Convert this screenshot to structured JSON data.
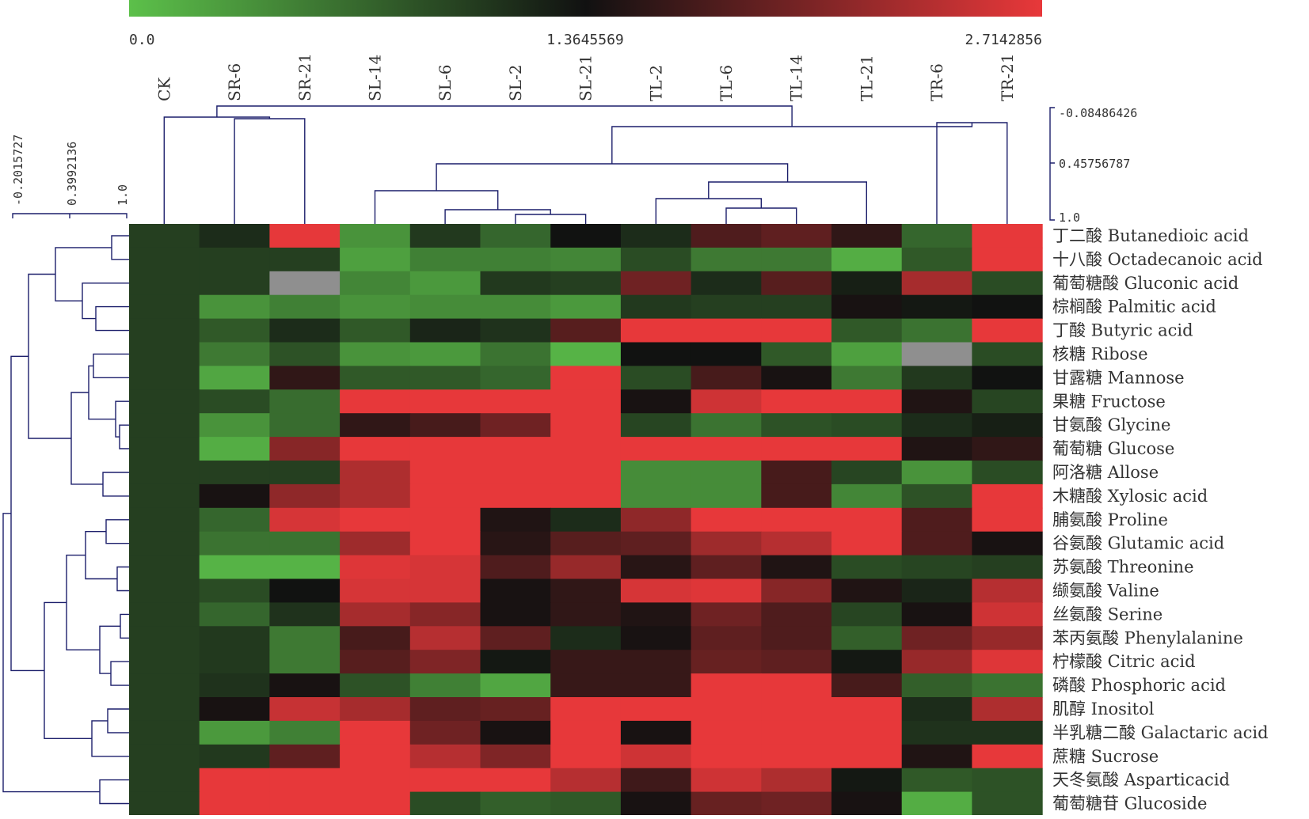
{
  "chart_data": {
    "type": "heatmap",
    "title": "",
    "color_scale": {
      "min": 0.0,
      "mid": 1.3645569,
      "max": 2.7142856,
      "min_label": "0.0",
      "mid_label": "1.3645569",
      "max_label": "2.7142856",
      "low_color": "#5cc04a",
      "mid_color": "#111111",
      "high_color": "#e8383a",
      "missing_color": "#8f8f8f"
    },
    "columns": [
      "CK",
      "SR-6",
      "SR-21",
      "SL-14",
      "SL-6",
      "SL-2",
      "SL-21",
      "TL-2",
      "TL-6",
      "TL-14",
      "TL-21",
      "TR-6",
      "TR-21"
    ],
    "rows": [
      {
        "zh": "丁二酸",
        "en": "Butanedioic acid"
      },
      {
        "zh": "十八酸",
        "en": "Octadecanoic acid"
      },
      {
        "zh": "葡萄糖酸",
        "en": "Gluconic acid"
      },
      {
        "zh": "棕榈酸",
        "en": "Palmitic acid"
      },
      {
        "zh": "丁酸",
        "en": "Butyric acid"
      },
      {
        "zh": "核糖",
        "en": "Ribose"
      },
      {
        "zh": "甘露糖",
        "en": "Mannose"
      },
      {
        "zh": "果糖",
        "en": "Fructose"
      },
      {
        "zh": "甘氨酸",
        "en": "Glycine"
      },
      {
        "zh": "葡萄糖",
        "en": "Glucose"
      },
      {
        "zh": "阿洛糖",
        "en": "Allose"
      },
      {
        "zh": "木糖酸",
        "en": "Xylosic acid"
      },
      {
        "zh": "脯氨酸",
        "en": "Proline"
      },
      {
        "zh": "谷氨酸",
        "en": "Glutamic acid"
      },
      {
        "zh": "苏氨酸",
        "en": "Threonine"
      },
      {
        "zh": "缬氨酸",
        "en": "Valine"
      },
      {
        "zh": "丝氨酸",
        "en": "Serine"
      },
      {
        "zh": "苯丙氨酸",
        "en": "Phenylalanine"
      },
      {
        "zh": "柠檬酸",
        "en": "Citric acid"
      },
      {
        "zh": "磷酸",
        "en": "Phosphoric acid"
      },
      {
        "zh": "肌醇",
        "en": "Inositol"
      },
      {
        "zh": "半乳糖二酸",
        "en": "Galactaric acid"
      },
      {
        "zh": "蔗糖",
        "en": "Sucrose"
      },
      {
        "zh": "天冬氨酸",
        "en": "Asparticacid"
      },
      {
        "zh": "葡萄糖苷",
        "en": "Glucoside"
      }
    ],
    "values": [
      [
        1.0,
        1.15,
        2.7,
        0.35,
        1.05,
        0.7,
        1.35,
        1.15,
        1.75,
        1.85,
        1.55,
        0.7,
        2.71
      ],
      [
        1.0,
        1.0,
        1.0,
        0.25,
        0.5,
        0.5,
        0.45,
        0.9,
        0.55,
        0.55,
        0.15,
        0.8,
        2.71
      ],
      [
        1.0,
        1.0,
        null,
        0.45,
        0.3,
        1.05,
        1.0,
        1.95,
        1.15,
        1.8,
        1.25,
        2.3,
        0.9
      ],
      [
        1.0,
        0.35,
        0.5,
        0.35,
        0.4,
        0.4,
        0.3,
        1.05,
        1.0,
        1.0,
        1.4,
        1.3,
        1.35
      ],
      [
        1.0,
        0.8,
        1.15,
        0.8,
        1.2,
        1.1,
        1.8,
        2.71,
        2.71,
        2.71,
        0.8,
        0.6,
        2.71
      ],
      [
        1.0,
        0.55,
        0.85,
        0.35,
        0.3,
        0.6,
        0.1,
        1.35,
        1.35,
        0.8,
        0.25,
        null,
        0.9
      ],
      [
        1.0,
        0.2,
        1.55,
        0.8,
        0.8,
        0.7,
        2.71,
        0.9,
        1.7,
        1.4,
        0.55,
        1.05,
        1.35
      ],
      [
        1.0,
        0.9,
        0.65,
        2.71,
        2.71,
        2.71,
        2.71,
        1.4,
        2.55,
        2.71,
        2.71,
        1.45,
        0.95
      ],
      [
        1.0,
        0.35,
        0.65,
        1.55,
        1.7,
        1.95,
        2.71,
        0.95,
        0.6,
        0.85,
        0.9,
        1.15,
        1.25
      ],
      [
        1.0,
        0.15,
        2.1,
        2.71,
        2.71,
        2.71,
        2.71,
        2.71,
        2.71,
        2.71,
        2.71,
        1.45,
        1.55
      ],
      [
        1.0,
        1.0,
        1.0,
        2.35,
        2.71,
        2.71,
        2.71,
        0.4,
        0.4,
        1.7,
        0.95,
        0.35,
        0.9
      ],
      [
        1.0,
        1.4,
        2.15,
        2.35,
        2.71,
        2.71,
        2.71,
        0.4,
        0.4,
        1.7,
        0.45,
        0.85,
        2.71
      ],
      [
        1.0,
        0.7,
        2.6,
        2.71,
        2.71,
        1.45,
        1.15,
        2.15,
        2.71,
        2.71,
        2.71,
        1.75,
        2.71
      ],
      [
        1.0,
        0.6,
        0.6,
        2.25,
        2.71,
        1.5,
        1.8,
        1.85,
        2.25,
        2.4,
        2.71,
        1.75,
        1.4
      ],
      [
        1.0,
        0.1,
        0.1,
        2.65,
        2.6,
        1.75,
        2.2,
        1.5,
        1.85,
        1.45,
        0.9,
        0.95,
        1.0
      ],
      [
        1.0,
        0.9,
        1.35,
        2.6,
        2.6,
        1.4,
        1.55,
        2.6,
        2.65,
        2.1,
        1.45,
        1.2,
        2.4
      ],
      [
        1.0,
        0.7,
        1.1,
        2.3,
        2.1,
        1.4,
        1.55,
        1.45,
        1.95,
        1.75,
        0.95,
        1.4,
        2.55
      ],
      [
        1.0,
        1.05,
        0.55,
        1.7,
        2.4,
        1.85,
        1.15,
        1.4,
        1.85,
        1.75,
        0.75,
        1.95,
        2.2
      ],
      [
        1.0,
        1.05,
        0.55,
        1.8,
        2.05,
        1.3,
        1.6,
        1.6,
        1.9,
        1.85,
        1.3,
        2.2,
        2.65
      ],
      [
        1.0,
        1.1,
        1.4,
        0.85,
        0.5,
        0.2,
        1.6,
        1.6,
        2.71,
        2.71,
        1.7,
        0.75,
        0.6
      ],
      [
        1.0,
        1.4,
        2.5,
        2.3,
        1.85,
        1.9,
        2.71,
        2.71,
        2.71,
        2.71,
        2.71,
        1.15,
        2.35
      ],
      [
        1.0,
        0.3,
        0.5,
        2.71,
        1.95,
        1.4,
        2.71,
        1.4,
        2.71,
        2.71,
        2.71,
        1.1,
        1.1
      ],
      [
        1.0,
        1.05,
        1.85,
        2.71,
        2.4,
        2.05,
        2.71,
        2.55,
        2.71,
        2.71,
        2.71,
        1.45,
        2.71
      ],
      [
        1.0,
        2.71,
        2.71,
        2.71,
        2.71,
        2.71,
        2.4,
        1.65,
        2.55,
        2.35,
        1.3,
        0.8,
        0.85
      ],
      [
        1.0,
        2.71,
        2.71,
        2.71,
        0.9,
        0.75,
        0.8,
        1.4,
        1.9,
        1.95,
        1.4,
        0.15,
        0.85
      ]
    ],
    "column_dendrogram_scale": [
      "-0.08486426",
      "0.45756787",
      "1.0"
    ],
    "row_dendrogram_scale": [
      "-0.2015727",
      "0.3992136",
      "1.0"
    ],
    "legend_position": "top"
  }
}
